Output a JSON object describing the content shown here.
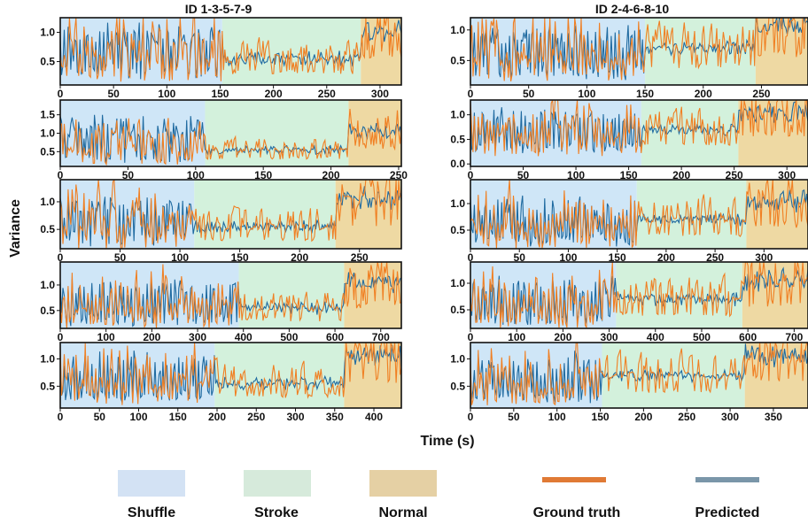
{
  "figure": {
    "ylabel": "Variance",
    "xlabel": "Time (s)",
    "colors": {
      "shuffle": "#cfe6f7",
      "stroke": "#d3f1dc",
      "normal": "#eed9a3",
      "ground_truth": "#f07f22",
      "predicted": "#1f6aa0"
    },
    "legend": {
      "shuffle": "Shuffle",
      "stroke": "Stroke",
      "normal": "Normal",
      "ground_truth": "Ground truth",
      "predicted": "Predicted"
    },
    "legend_swatch_colors": {
      "shuffle": "#d3e2f4",
      "stroke": "#d6eadb",
      "normal": "#e5d0a4",
      "ground_truth": "#e07a35",
      "predicted": "#7a96a9"
    }
  },
  "chart_data": [
    {
      "type": "line",
      "column": "left",
      "row": 0,
      "title": "ID 1-3-5-7-9",
      "xlim": [
        0,
        320
      ],
      "ylim": [
        0.1,
        1.25
      ],
      "xticks": [
        0,
        50,
        100,
        150,
        200,
        250,
        300
      ],
      "yticks": [
        0.5,
        1.0
      ],
      "ytick_labels": [
        "0.5",
        "1.0"
      ],
      "segments": {
        "shuffle": [
          0,
          152
        ],
        "stroke": [
          152,
          282
        ],
        "normal": [
          282,
          320
        ]
      },
      "series": [
        {
          "name": "Ground truth",
          "key": "ground_truth"
        },
        {
          "name": "Predicted",
          "key": "predicted"
        }
      ]
    },
    {
      "type": "line",
      "column": "left",
      "row": 1,
      "title": "",
      "xlim": [
        0,
        252
      ],
      "ylim": [
        0.1,
        1.9
      ],
      "xticks": [
        0,
        50,
        100,
        150,
        200,
        250
      ],
      "yticks": [
        0.5,
        1.0,
        1.5
      ],
      "ytick_labels": [
        "0.5",
        "1.0",
        "1.5"
      ],
      "segments": {
        "shuffle": [
          0,
          107
        ],
        "stroke": [
          107,
          213
        ],
        "normal": [
          213,
          252
        ]
      },
      "series": [
        {
          "name": "Ground truth",
          "key": "ground_truth"
        },
        {
          "name": "Predicted",
          "key": "predicted"
        }
      ]
    },
    {
      "type": "line",
      "column": "left",
      "row": 2,
      "title": "",
      "xlim": [
        0,
        285
      ],
      "ylim": [
        0.15,
        1.4
      ],
      "xticks": [
        0,
        50,
        100,
        150,
        200,
        250
      ],
      "yticks": [
        0.5,
        1.0
      ],
      "ytick_labels": [
        "0.5",
        "1.0"
      ],
      "segments": {
        "shuffle": [
          0,
          112
        ],
        "stroke": [
          112,
          230
        ],
        "normal": [
          230,
          285
        ]
      },
      "series": [
        {
          "name": "Ground truth",
          "key": "ground_truth"
        },
        {
          "name": "Predicted",
          "key": "predicted"
        }
      ]
    },
    {
      "type": "line",
      "column": "left",
      "row": 3,
      "title": "",
      "xlim": [
        0,
        745
      ],
      "ylim": [
        0.15,
        1.45
      ],
      "xticks": [
        0,
        100,
        200,
        300,
        400,
        500,
        600,
        700
      ],
      "yticks": [
        0.5,
        1.0
      ],
      "ytick_labels": [
        "0.5",
        "1.0"
      ],
      "segments": {
        "shuffle": [
          0,
          390
        ],
        "stroke": [
          390,
          620
        ],
        "normal": [
          620,
          745
        ]
      },
      "series": [
        {
          "name": "Ground truth",
          "key": "ground_truth"
        },
        {
          "name": "Predicted",
          "key": "predicted"
        }
      ]
    },
    {
      "type": "line",
      "column": "left",
      "row": 4,
      "title": "",
      "xlim": [
        0,
        435
      ],
      "ylim": [
        0.1,
        1.3
      ],
      "xticks": [
        0,
        50,
        100,
        150,
        200,
        250,
        300,
        350,
        400
      ],
      "yticks": [
        0.5,
        1.0
      ],
      "ytick_labels": [
        "0.5",
        "1.0"
      ],
      "segments": {
        "shuffle": [
          0,
          197
        ],
        "stroke": [
          197,
          362
        ],
        "normal": [
          362,
          435
        ]
      },
      "series": [
        {
          "name": "Ground truth",
          "key": "ground_truth"
        },
        {
          "name": "Predicted",
          "key": "predicted"
        }
      ]
    },
    {
      "type": "line",
      "column": "right",
      "row": 0,
      "title": "ID 2-4-6-8-10",
      "xlim": [
        0,
        290
      ],
      "ylim": [
        0.1,
        1.2
      ],
      "xticks": [
        0,
        50,
        100,
        150,
        200,
        250
      ],
      "yticks": [
        0.5,
        1.0
      ],
      "ytick_labels": [
        "0.5",
        "1.0"
      ],
      "segments": {
        "shuffle": [
          0,
          150
        ],
        "stroke": [
          150,
          245
        ],
        "normal": [
          245,
          290
        ]
      },
      "series": [
        {
          "name": "Ground truth",
          "key": "ground_truth"
        },
        {
          "name": "Predicted",
          "key": "predicted"
        }
      ]
    },
    {
      "type": "line",
      "column": "right",
      "row": 1,
      "title": "",
      "xlim": [
        0,
        320
      ],
      "ylim": [
        -0.05,
        1.3
      ],
      "xticks": [
        0,
        50,
        100,
        150,
        200,
        250,
        300
      ],
      "yticks": [
        0.0,
        0.5,
        1.0
      ],
      "ytick_labels": [
        "0.0",
        "0.5",
        "1.0"
      ],
      "segments": {
        "shuffle": [
          0,
          162
        ],
        "stroke": [
          162,
          254
        ],
        "normal": [
          254,
          320
        ]
      },
      "series": [
        {
          "name": "Ground truth",
          "key": "ground_truth"
        },
        {
          "name": "Predicted",
          "key": "predicted"
        }
      ]
    },
    {
      "type": "line",
      "column": "right",
      "row": 2,
      "title": "",
      "xlim": [
        0,
        345
      ],
      "ylim": [
        0.15,
        1.45
      ],
      "xticks": [
        0,
        50,
        100,
        150,
        200,
        250,
        300
      ],
      "yticks": [
        0.5,
        1.0
      ],
      "ytick_labels": [
        "0.5",
        "1.0"
      ],
      "segments": {
        "shuffle": [
          0,
          170
        ],
        "stroke": [
          170,
          282
        ],
        "normal": [
          282,
          345
        ]
      },
      "series": [
        {
          "name": "Ground truth",
          "key": "ground_truth"
        },
        {
          "name": "Predicted",
          "key": "predicted"
        }
      ]
    },
    {
      "type": "line",
      "column": "right",
      "row": 3,
      "title": "",
      "xlim": [
        0,
        730
      ],
      "ylim": [
        0.15,
        1.4
      ],
      "xticks": [
        0,
        100,
        200,
        300,
        400,
        500,
        600,
        700
      ],
      "yticks": [
        0.5,
        1.0
      ],
      "ytick_labels": [
        "0.5",
        "1.0"
      ],
      "segments": {
        "shuffle": [
          0,
          315
        ],
        "stroke": [
          315,
          588
        ],
        "normal": [
          588,
          730
        ]
      },
      "series": [
        {
          "name": "Ground truth",
          "key": "ground_truth"
        },
        {
          "name": "Predicted",
          "key": "predicted"
        }
      ]
    },
    {
      "type": "line",
      "column": "right",
      "row": 4,
      "title": "",
      "xlim": [
        0,
        390
      ],
      "ylim": [
        0.1,
        1.3
      ],
      "xticks": [
        0,
        50,
        100,
        150,
        200,
        250,
        300,
        350
      ],
      "yticks": [
        0.5,
        1.0
      ],
      "ytick_labels": [
        "0.5",
        "1.0"
      ],
      "segments": {
        "shuffle": [
          0,
          152
        ],
        "stroke": [
          152,
          317
        ],
        "normal": [
          317,
          390
        ]
      },
      "series": [
        {
          "name": "Ground truth",
          "key": "ground_truth"
        },
        {
          "name": "Predicted",
          "key": "predicted"
        }
      ]
    }
  ]
}
